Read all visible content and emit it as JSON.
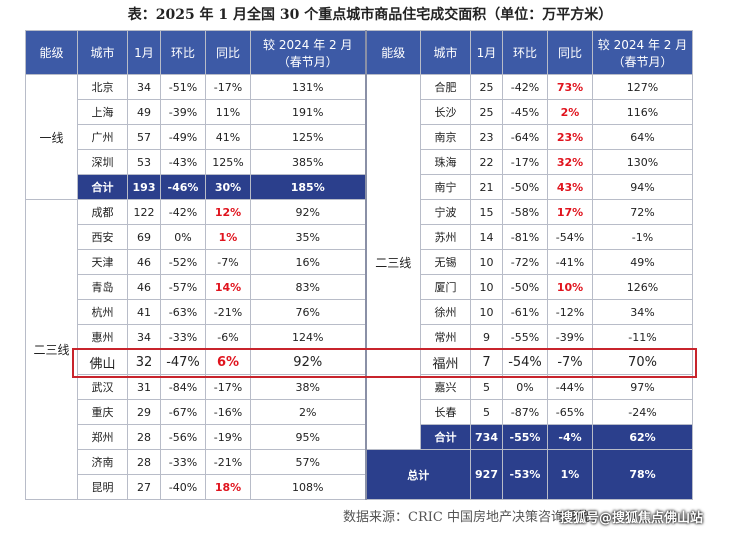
{
  "title": "表：2025 年 1 月全国 30 个重点城市商品住宅成交面积（单位：万平方米）",
  "header": {
    "tier": "能级",
    "city": "城市",
    "jan": "1月",
    "mom": "环比",
    "yoy": "同比",
    "vs": [
      "较 2024 年 2 月",
      "（春节月）"
    ]
  },
  "left": {
    "groups": [
      {
        "tier": "一线",
        "rows": [
          {
            "cells": [
              "北京",
              "34",
              "-51%",
              "-17%",
              "131%"
            ]
          },
          {
            "cells": [
              "上海",
              "49",
              "-39%",
              "11%",
              "191%"
            ]
          },
          {
            "cells": [
              "广州",
              "57",
              "-49%",
              "41%",
              "125%"
            ]
          },
          {
            "cells": [
              "深圳",
              "53",
              "-43%",
              "125%",
              "385%"
            ]
          },
          {
            "cells": [
              "合计",
              "193",
              "-46%",
              "30%",
              "185%"
            ],
            "total": true
          }
        ]
      },
      {
        "tier": "二三线",
        "rows": [
          {
            "cells": [
              "成都",
              "122",
              "-42%",
              "12%",
              "92%"
            ],
            "red_yoy": true
          },
          {
            "cells": [
              "西安",
              "69",
              "0%",
              "1%",
              "35%"
            ],
            "red_yoy": true
          },
          {
            "cells": [
              "天津",
              "46",
              "-52%",
              "-7%",
              "16%"
            ]
          },
          {
            "cells": [
              "青岛",
              "46",
              "-57%",
              "14%",
              "83%"
            ],
            "red_yoy": true
          },
          {
            "cells": [
              "杭州",
              "41",
              "-63%",
              "-21%",
              "76%"
            ]
          },
          {
            "cells": [
              "惠州",
              "34",
              "-33%",
              "-6%",
              "124%"
            ]
          },
          {
            "cells": [
              "佛山",
              "32",
              "-47%",
              "6%",
              "92%"
            ],
            "red_yoy": true,
            "highlight": true
          },
          {
            "cells": [
              "武汉",
              "31",
              "-84%",
              "-17%",
              "38%"
            ]
          },
          {
            "cells": [
              "重庆",
              "29",
              "-67%",
              "-16%",
              "2%"
            ]
          },
          {
            "cells": [
              "郑州",
              "28",
              "-56%",
              "-19%",
              "95%"
            ]
          },
          {
            "cells": [
              "济南",
              "28",
              "-33%",
              "-21%",
              "57%"
            ]
          },
          {
            "cells": [
              "昆明",
              "27",
              "-40%",
              "18%",
              "108%"
            ],
            "red_yoy": true
          }
        ]
      }
    ]
  },
  "right": {
    "groups": [
      {
        "tier": "二三线",
        "rows": [
          {
            "cells": [
              "合肥",
              "25",
              "-42%",
              "73%",
              "127%"
            ],
            "red_yoy": true
          },
          {
            "cells": [
              "长沙",
              "25",
              "-45%",
              "2%",
              "116%"
            ],
            "red_yoy": true
          },
          {
            "cells": [
              "南京",
              "23",
              "-64%",
              "23%",
              "64%"
            ],
            "red_yoy": true
          },
          {
            "cells": [
              "珠海",
              "22",
              "-17%",
              "32%",
              "130%"
            ],
            "red_yoy": true
          },
          {
            "cells": [
              "南宁",
              "21",
              "-50%",
              "43%",
              "94%"
            ],
            "red_yoy": true
          },
          {
            "cells": [
              "宁波",
              "15",
              "-58%",
              "17%",
              "72%"
            ],
            "red_yoy": true
          },
          {
            "cells": [
              "苏州",
              "14",
              "-81%",
              "-54%",
              "-1%"
            ]
          },
          {
            "cells": [
              "无锡",
              "10",
              "-72%",
              "-41%",
              "49%"
            ]
          },
          {
            "cells": [
              "厦门",
              "10",
              "-50%",
              "10%",
              "126%"
            ],
            "red_yoy": true
          },
          {
            "cells": [
              "徐州",
              "10",
              "-61%",
              "-12%",
              "34%"
            ]
          },
          {
            "cells": [
              "常州",
              "9",
              "-55%",
              "-39%",
              "-11%"
            ]
          },
          {
            "cells": [
              "福州",
              "7",
              "-54%",
              "-7%",
              "70%"
            ]
          },
          {
            "cells": [
              "嘉兴",
              "5",
              "0%",
              "-44%",
              "97%"
            ]
          },
          {
            "cells": [
              "长春",
              "5",
              "-87%",
              "-65%",
              "-24%"
            ]
          },
          {
            "cells": [
              "合计",
              "734",
              "-55%",
              "-4%",
              "62%"
            ],
            "total": true
          }
        ]
      }
    ],
    "grand_total": {
      "label": "总计",
      "cells": [
        "927",
        "-53%",
        "1%",
        "78%"
      ]
    }
  },
  "source": "数据来源：CRIC 中国房地产决策咨询系统",
  "watermark": "搜狐号@搜狐焦点佛山站"
}
